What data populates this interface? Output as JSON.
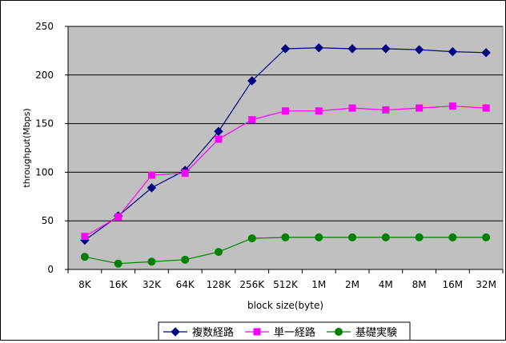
{
  "chart_data": {
    "type": "line",
    "title": "",
    "xlabel": "block size(byte)",
    "ylabel": "throughput(Mbps)",
    "categories": [
      "8K",
      "16K",
      "32K",
      "64K",
      "128K",
      "256K",
      "512K",
      "1M",
      "2M",
      "4M",
      "8M",
      "16M",
      "32M"
    ],
    "ylim": [
      0,
      250
    ],
    "yticks": [
      0,
      50,
      100,
      150,
      200,
      250
    ],
    "grid": true,
    "plot_background": "#c0c0c0",
    "legend_position": "bottom",
    "series": [
      {
        "name": "複数経路",
        "color": "#000080",
        "marker": "diamond",
        "values": [
          30,
          55,
          84,
          102,
          142,
          194,
          227,
          228,
          227,
          227,
          226,
          224,
          223
        ]
      },
      {
        "name": "単一経路",
        "color": "#ff00ff",
        "marker": "square",
        "values": [
          34,
          54,
          97,
          99,
          134,
          154,
          163,
          163,
          166,
          164,
          166,
          168,
          166
        ]
      },
      {
        "name": "基礎実験",
        "color": "#008000",
        "marker": "circle",
        "values": [
          13,
          6,
          8,
          10,
          18,
          32,
          33,
          33,
          33,
          33,
          33,
          33,
          33
        ]
      }
    ]
  }
}
